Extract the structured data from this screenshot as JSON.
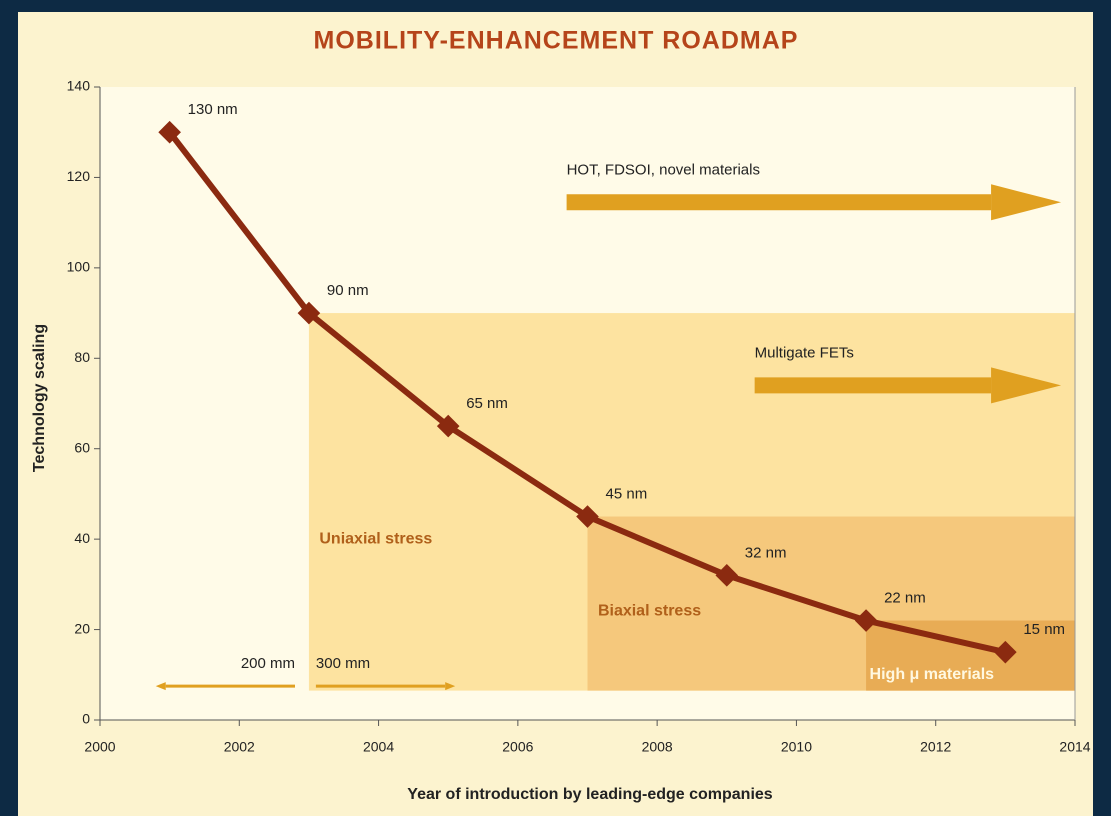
{
  "chart_data": {
    "type": "line",
    "title": "MOBILITY-ENHANCEMENT ROADMAP",
    "x_label": "Year of introduction by leading-edge companies",
    "y_label": "Technology scaling",
    "x": [
      2001,
      2003,
      2005,
      2007,
      2009,
      2011,
      2013
    ],
    "values": [
      130,
      90,
      65,
      45,
      32,
      22,
      15
    ],
    "value_labels": [
      "130 nm",
      "90 nm",
      "65 nm",
      "45 nm",
      "32 nm",
      "22 nm",
      "15 nm"
    ],
    "color": "#8b2a10",
    "xlim": [
      2000,
      2014
    ],
    "xticks": [
      2000,
      2002,
      2004,
      2006,
      2008,
      2010,
      2012,
      2014
    ],
    "ylim": [
      0,
      140
    ],
    "yticks": [
      0,
      20,
      40,
      60,
      80,
      100,
      120,
      140
    ],
    "regions": [
      {
        "label": "Uniaxial stress",
        "x0": 2003,
        "x1": 2014,
        "y0": 6.5,
        "y1": 90,
        "color": "#fde3a0"
      },
      {
        "label": "Biaxial stress",
        "x0": 2007,
        "x1": 2014,
        "y0": 6.5,
        "y1": 45,
        "color": "#f5c87c"
      },
      {
        "label": "High μ materials",
        "x0": 2011,
        "x1": 2014,
        "y0": 6.5,
        "y1": 22,
        "color": "#e8ac55"
      }
    ],
    "arrows": [
      {
        "label": "HOT, FDSOI, novel materials",
        "x0": 2006.7,
        "x1": 2013.8,
        "y": 114.5,
        "color": "#e0a020"
      },
      {
        "label": "Multigate FETs",
        "x0": 2009.4,
        "x1": 2013.8,
        "y": 74,
        "color": "#e0a020"
      },
      {
        "label": "200 mm",
        "x0": 2002.8,
        "x1": 2000.8,
        "y": 7.5,
        "color": "#e0a020"
      },
      {
        "label": "300 mm",
        "x0": 2003.1,
        "x1": 2005.1,
        "y": 7.5,
        "color": "#e0a020"
      }
    ]
  }
}
